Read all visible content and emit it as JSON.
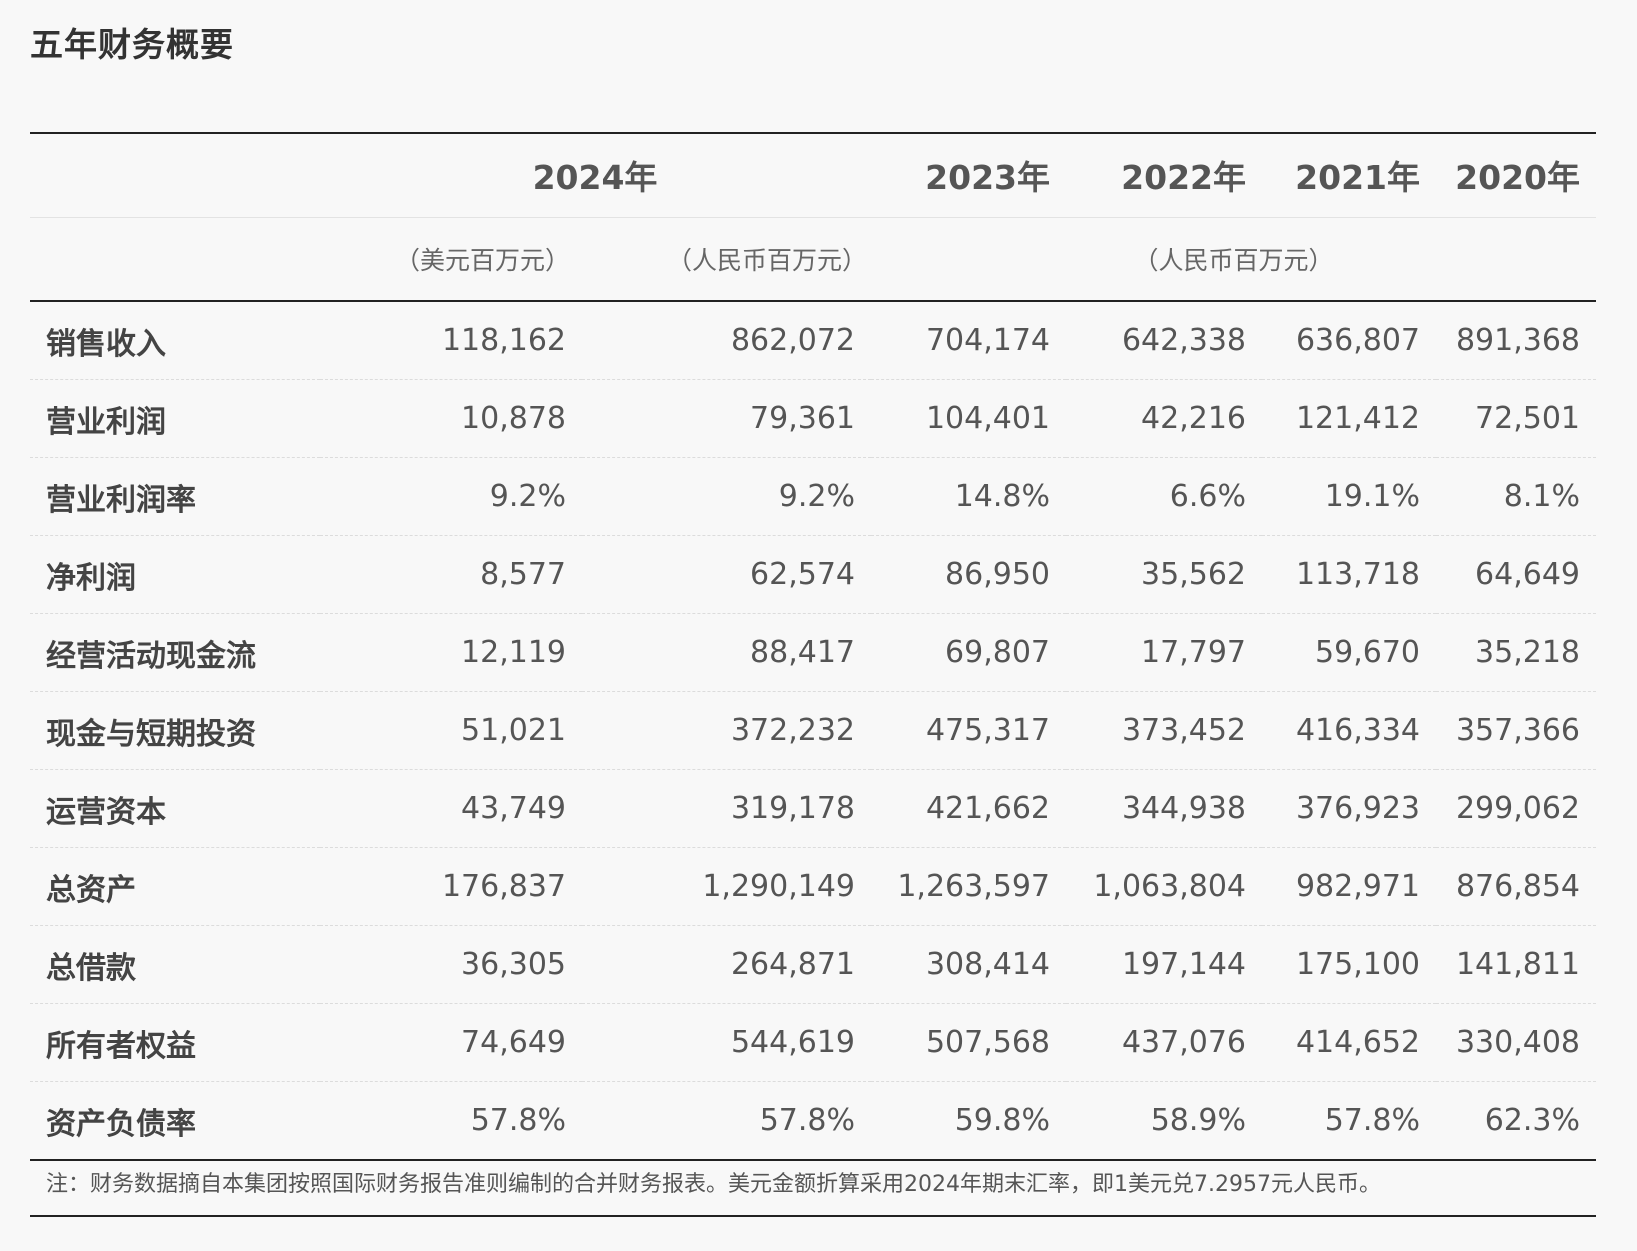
{
  "title": "五年财务概要",
  "years": [
    "2024年",
    "2023年",
    "2022年",
    "2021年",
    "2020年"
  ],
  "units": {
    "usd": "（美元百万元）",
    "rmb_2024": "（人民币百万元）",
    "rmb_hist": "（人民币百万元）"
  },
  "rows": [
    {
      "label": "销售收入",
      "values": [
        "118,162",
        "862,072",
        "704,174",
        "642,338",
        "636,807",
        "891,368"
      ]
    },
    {
      "label": "营业利润",
      "values": [
        "10,878",
        "79,361",
        "104,401",
        "42,216",
        "121,412",
        "72,501"
      ]
    },
    {
      "label": "营业利润率",
      "values": [
        "9.2%",
        "9.2%",
        "14.8%",
        "6.6%",
        "19.1%",
        "8.1%"
      ]
    },
    {
      "label": "净利润",
      "values": [
        "8,577",
        "62,574",
        "86,950",
        "35,562",
        "113,718",
        "64,649"
      ]
    },
    {
      "label": "经营活动现金流",
      "values": [
        "12,119",
        "88,417",
        "69,807",
        "17,797",
        "59,670",
        "35,218"
      ]
    },
    {
      "label": "现金与短期投资",
      "values": [
        "51,021",
        "372,232",
        "475,317",
        "373,452",
        "416,334",
        "357,366"
      ]
    },
    {
      "label": "运营资本",
      "values": [
        "43,749",
        "319,178",
        "421,662",
        "344,938",
        "376,923",
        "299,062"
      ]
    },
    {
      "label": "总资产",
      "values": [
        "176,837",
        "1,290,149",
        "1,263,597",
        "1,063,804",
        "982,971",
        "876,854"
      ]
    },
    {
      "label": "总借款",
      "values": [
        "36,305",
        "264,871",
        "308,414",
        "197,144",
        "175,100",
        "141,811"
      ]
    },
    {
      "label": "所有者权益",
      "values": [
        "74,649",
        "544,619",
        "507,568",
        "437,076",
        "414,652",
        "330,408"
      ]
    },
    {
      "label": "资产负债率",
      "values": [
        "57.8%",
        "57.8%",
        "59.8%",
        "58.9%",
        "57.8%",
        "62.3%"
      ]
    }
  ],
  "note": "注：财务数据摘自本集团按照国际财务报告准则编制的合并财务报表。美元金额折算采用2024年期末汇率，即1美元兑7.2957元人民币。"
}
